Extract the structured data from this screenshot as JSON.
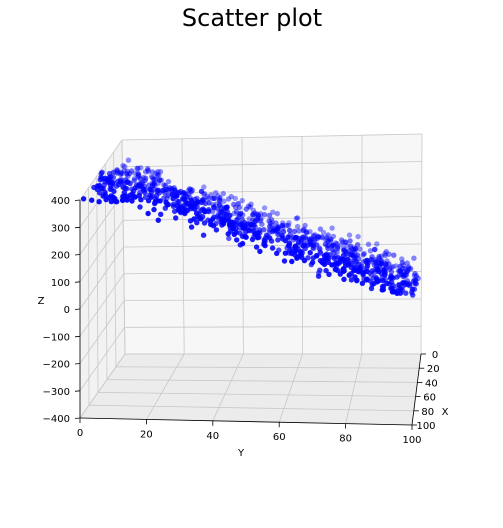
{
  "chart_data": {
    "type": "scatter",
    "projection": "3d",
    "title": "Scatter plot",
    "xlabel": "X",
    "ylabel": "Y",
    "zlabel": "Z",
    "xlim": [
      0,
      100
    ],
    "ylim": [
      0,
      100
    ],
    "zlim": [
      -400,
      400
    ],
    "x_ticks": [
      "0",
      "20",
      "40",
      "60",
      "80",
      "100"
    ],
    "y_ticks": [
      "0",
      "20",
      "40",
      "60",
      "80",
      "100"
    ],
    "z_ticks": [
      "−400",
      "−300",
      "−200",
      "−100",
      "0",
      "100",
      "200",
      "300",
      "400"
    ],
    "grid": true,
    "marker_color": "#0000ff",
    "point_count_estimate": 900,
    "relationship": "points form a tilted planar band; z ≈ 4·x − 4·y + 300 with noise",
    "series": [
      {
        "values_sample": [
          {
            "x": 2,
            "y": 0,
            "z": 420
          },
          {
            "x": 50,
            "y": 5,
            "z": 380
          },
          {
            "x": 95,
            "y": 10,
            "z": 330
          },
          {
            "x": 5,
            "y": 25,
            "z": 260
          },
          {
            "x": 50,
            "y": 30,
            "z": 190
          },
          {
            "x": 90,
            "y": 35,
            "z": 150
          },
          {
            "x": 10,
            "y": 50,
            "z": 80
          },
          {
            "x": 55,
            "y": 50,
            "z": 60
          },
          {
            "x": 95,
            "y": 55,
            "z": 20
          },
          {
            "x": 10,
            "y": 75,
            "z": -40
          },
          {
            "x": 50,
            "y": 80,
            "z": -90
          },
          {
            "x": 95,
            "y": 85,
            "z": -120
          },
          {
            "x": 5,
            "y": 95,
            "z": -110
          },
          {
            "x": 60,
            "y": 100,
            "z": -200
          },
          {
            "x": 98,
            "y": 100,
            "z": -260
          }
        ]
      }
    ]
  }
}
